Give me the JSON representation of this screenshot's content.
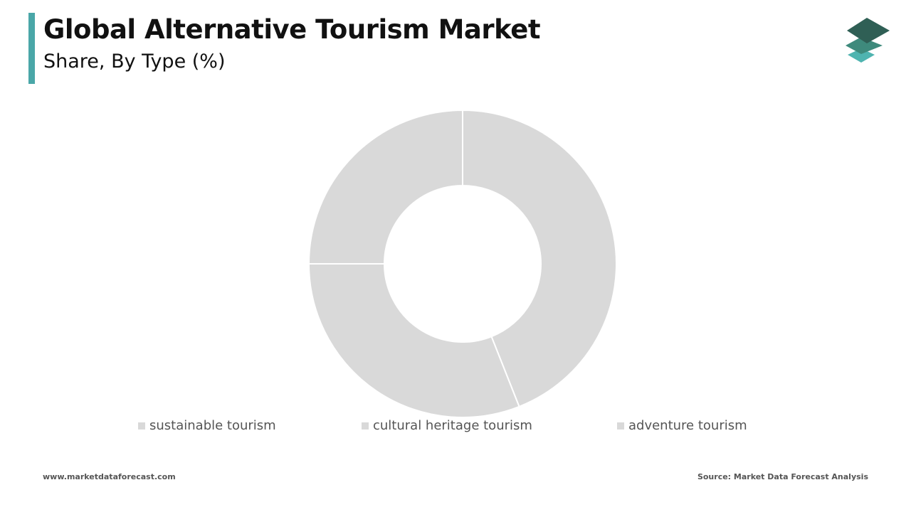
{
  "header": {
    "title": "Global Alternative Tourism Market",
    "subtitle": "Share, By Type (%)"
  },
  "logo": {
    "icon": "stacked-layers-logo-icon",
    "colors": [
      "#2f5f55",
      "#3e8a7c",
      "#4fb4b0"
    ]
  },
  "colors": {
    "accent_bar": "#4aa7a8",
    "slice_fill": "#d9d9d9",
    "slice_border": "#ffffff"
  },
  "chart_data": {
    "type": "pie",
    "style": "donut",
    "categories": [
      "sustainable tourism",
      "cultural heritage tourism",
      "adventure tourism"
    ],
    "values": [
      44,
      31,
      25
    ],
    "unit": "%",
    "legend_position": "bottom",
    "data_labels": false
  },
  "footer": {
    "website": "www.marketdataforecast.com",
    "source": "Source: Market Data Forecast Analysis"
  }
}
